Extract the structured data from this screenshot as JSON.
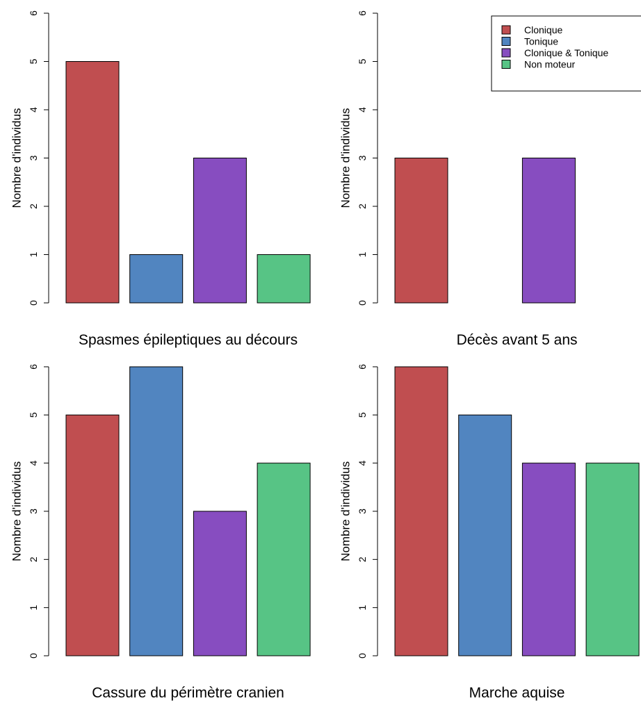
{
  "chart_data": [
    {
      "type": "bar",
      "xlabel": "Spasmes épileptiques au décours",
      "ylabel": "Nombre d'individus",
      "ylim": [
        0,
        6
      ],
      "yticks": [
        "0",
        "1",
        "2",
        "3",
        "4",
        "5",
        "6"
      ],
      "categories": [
        "Clonique",
        "Tonique",
        "Clonique & Tonique",
        "Non moteur"
      ],
      "values": [
        5,
        1,
        3,
        1
      ]
    },
    {
      "type": "bar",
      "xlabel": "Décès avant 5 ans",
      "ylabel": "Nombre d'individus",
      "ylim": [
        0,
        6
      ],
      "yticks": [
        "0",
        "1",
        "2",
        "3",
        "4",
        "5",
        "6"
      ],
      "categories": [
        "Clonique",
        "Tonique",
        "Clonique & Tonique",
        "Non moteur"
      ],
      "values": [
        3,
        0,
        3,
        0
      ],
      "legend": {
        "placement": "top-right",
        "entries": [
          "Clonique",
          "Tonique",
          "Clonique & Tonique",
          "Non moteur"
        ]
      }
    },
    {
      "type": "bar",
      "xlabel": "Cassure du périmètre cranien",
      "ylabel": "Nombre d'individus",
      "ylim": [
        0,
        6
      ],
      "yticks": [
        "0",
        "1",
        "2",
        "3",
        "4",
        "5",
        "6"
      ],
      "categories": [
        "Clonique",
        "Tonique",
        "Clonique & Tonique",
        "Non moteur"
      ],
      "values": [
        5,
        6,
        3,
        4
      ]
    },
    {
      "type": "bar",
      "xlabel": "Marche aquise",
      "ylabel": "Nombre d'individus",
      "ylim": [
        0,
        6
      ],
      "yticks": [
        "0",
        "1",
        "2",
        "3",
        "4",
        "5",
        "6"
      ],
      "categories": [
        "Clonique",
        "Tonique",
        "Clonique & Tonique",
        "Non moteur"
      ],
      "values": [
        6,
        5,
        4,
        4
      ]
    }
  ],
  "colors": {
    "Clonique": "#c04e50",
    "Tonique": "#5185c0",
    "Clonique & Tonique": "#874dc0",
    "Non moteur": "#57c485"
  }
}
